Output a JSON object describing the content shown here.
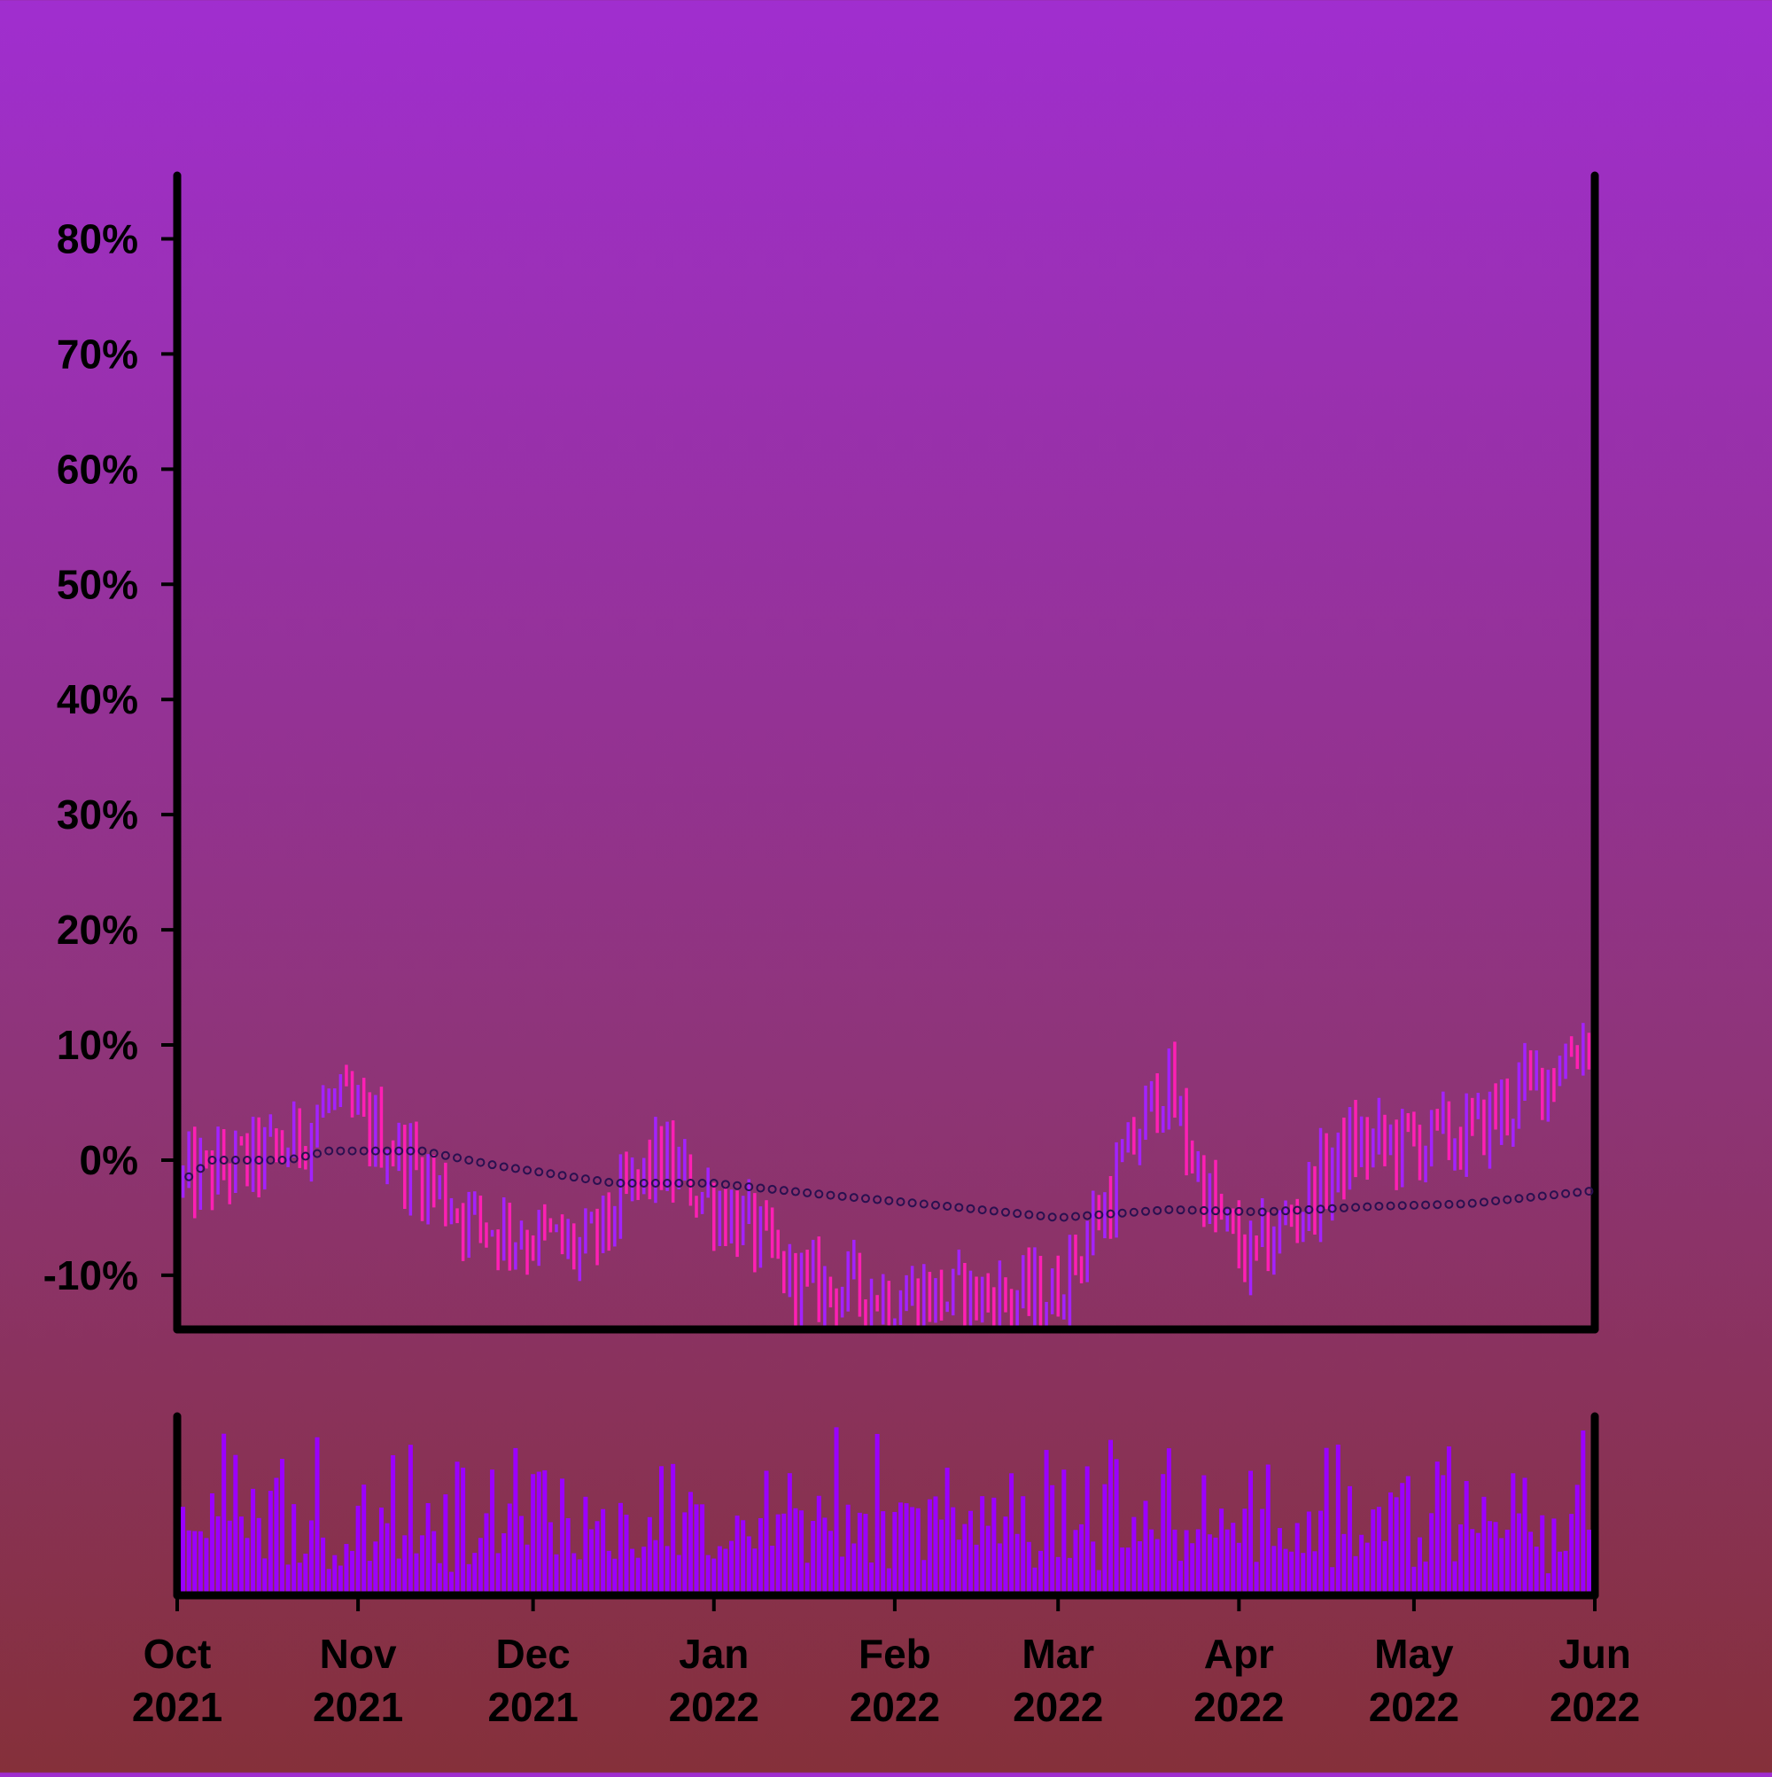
{
  "colors": {
    "up": "#a322ff",
    "down": "#ff1fb4",
    "volume": "#9b00ff",
    "moving_average_marker": "#2a1050",
    "axis": "#000000",
    "background_top": "#a02ecf",
    "background_bottom": "#85303a"
  },
  "chart_data": {
    "type": "ohlc",
    "title": "",
    "xlabel": "",
    "ylabel": "",
    "y_format": "percent",
    "ylim": [
      -0.147,
      0.855
    ],
    "xlim": [
      "2021-10-01",
      "2022-06-01"
    ],
    "grid": false,
    "legend": "none",
    "y_ticks": [
      {
        "value": -0.1,
        "label": "-10%"
      },
      {
        "value": 0.0,
        "label": "0%"
      },
      {
        "value": 0.1,
        "label": "10%"
      },
      {
        "value": 0.2,
        "label": "20%"
      },
      {
        "value": 0.3,
        "label": "30%"
      },
      {
        "value": 0.4,
        "label": "40%"
      },
      {
        "value": 0.5,
        "label": "50%"
      },
      {
        "value": 0.6,
        "label": "60%"
      },
      {
        "value": 0.7,
        "label": "70%"
      },
      {
        "value": 0.8,
        "label": "80%"
      }
    ],
    "x_ticks": [
      {
        "date": "2021-10-01",
        "month": "Oct",
        "year": "2021"
      },
      {
        "date": "2021-11-01",
        "month": "Nov",
        "year": "2021"
      },
      {
        "date": "2021-12-01",
        "month": "Dec",
        "year": "2021"
      },
      {
        "date": "2022-01-01",
        "month": "Jan",
        "year": "2022"
      },
      {
        "date": "2022-02-01",
        "month": "Feb",
        "year": "2022"
      },
      {
        "date": "2022-03-01",
        "month": "Mar",
        "year": "2022"
      },
      {
        "date": "2022-04-01",
        "month": "Apr",
        "year": "2022"
      },
      {
        "date": "2022-05-01",
        "month": "May",
        "year": "2022"
      },
      {
        "date": "2022-06-01",
        "month": "Jun",
        "year": "2022"
      }
    ],
    "price_trend_keyframes": [
      {
        "date": "2021-10-02",
        "close": -0.02
      },
      {
        "date": "2021-10-20",
        "close": 0.01
      },
      {
        "date": "2021-10-27",
        "close": 0.05
      },
      {
        "date": "2021-11-05",
        "close": 0.02
      },
      {
        "date": "2021-11-20",
        "close": -0.05
      },
      {
        "date": "2021-12-10",
        "close": -0.08
      },
      {
        "date": "2021-12-22",
        "close": 0.0
      },
      {
        "date": "2022-01-05",
        "close": -0.05
      },
      {
        "date": "2022-01-15",
        "close": -0.11
      },
      {
        "date": "2022-02-10",
        "close": -0.12
      },
      {
        "date": "2022-02-28",
        "close": -0.12
      },
      {
        "date": "2022-03-10",
        "close": -0.03
      },
      {
        "date": "2022-03-19",
        "close": 0.07
      },
      {
        "date": "2022-03-28",
        "close": -0.05
      },
      {
        "date": "2022-04-03",
        "close": -0.09
      },
      {
        "date": "2022-04-20",
        "close": 0.01
      },
      {
        "date": "2022-05-10",
        "close": 0.02
      },
      {
        "date": "2022-05-20",
        "close": 0.06
      },
      {
        "date": "2022-05-31",
        "close": 0.11
      }
    ],
    "moving_average": [
      {
        "date": "2021-10-02",
        "value": -0.018
      },
      {
        "date": "2021-10-07",
        "value": 0.0
      },
      {
        "date": "2021-10-20",
        "value": 0.0
      },
      {
        "date": "2021-10-27",
        "value": 0.008
      },
      {
        "date": "2021-11-12",
        "value": 0.008
      },
      {
        "date": "2021-11-25",
        "value": -0.005
      },
      {
        "date": "2021-12-15",
        "value": -0.02
      },
      {
        "date": "2022-01-01",
        "value": -0.02
      },
      {
        "date": "2022-01-20",
        "value": -0.03
      },
      {
        "date": "2022-02-10",
        "value": -0.04
      },
      {
        "date": "2022-03-01",
        "value": -0.05
      },
      {
        "date": "2022-03-20",
        "value": -0.043
      },
      {
        "date": "2022-04-05",
        "value": -0.045
      },
      {
        "date": "2022-04-25",
        "value": -0.04
      },
      {
        "date": "2022-05-10",
        "value": -0.038
      },
      {
        "date": "2022-05-31",
        "value": -0.027
      }
    ],
    "volume_range": [
      0,
      1
    ],
    "volume_levels": [
      0.25,
      0.3,
      0.65,
      0.85,
      0.9,
      0.55,
      0.4,
      0.75,
      0.5,
      0.35,
      0.6,
      0.8,
      0.45,
      0.7,
      0.3,
      0.55,
      0.9,
      0.65,
      0.4,
      0.5,
      0.85,
      0.35,
      0.6,
      0.75,
      0.45,
      0.95,
      0.55,
      0.3,
      0.7,
      0.5,
      0.8,
      0.4,
      0.6,
      0.9,
      0.45,
      0.65,
      0.35,
      0.75,
      0.55,
      0.85
    ]
  }
}
